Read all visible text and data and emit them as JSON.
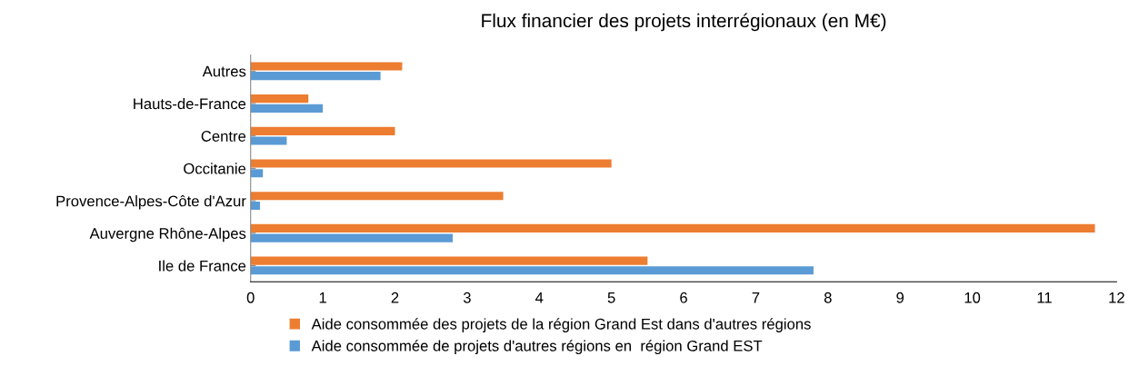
{
  "chart_data": {
    "type": "bar",
    "orientation": "horizontal",
    "title": "Flux financier des projets interrégionaux (en M€)",
    "categories": [
      "Autres",
      "Hauts-de-France",
      "Centre",
      "Occitanie",
      "Provence-Alpes-Côte d'Azur",
      "Auvergne Rhône-Alpes",
      "Ile de France"
    ],
    "series": [
      {
        "name": "Aide consommée des projets de la région Grand Est dans d'autres régions",
        "color": "#ed7d31",
        "values": [
          2.1,
          0.8,
          2.0,
          5.0,
          3.5,
          11.7,
          5.5
        ]
      },
      {
        "name": "Aide consommée de projets d'autres régions en  région Grand EST",
        "color": "#5b9bd5",
        "values": [
          1.8,
          1.0,
          0.5,
          0.17,
          0.13,
          2.8,
          7.8
        ]
      }
    ],
    "xlim": [
      0,
      12
    ],
    "xticks": [
      0,
      1,
      2,
      3,
      4,
      5,
      6,
      7,
      8,
      9,
      10,
      11,
      12
    ],
    "grid": false,
    "legend": "bottom"
  }
}
